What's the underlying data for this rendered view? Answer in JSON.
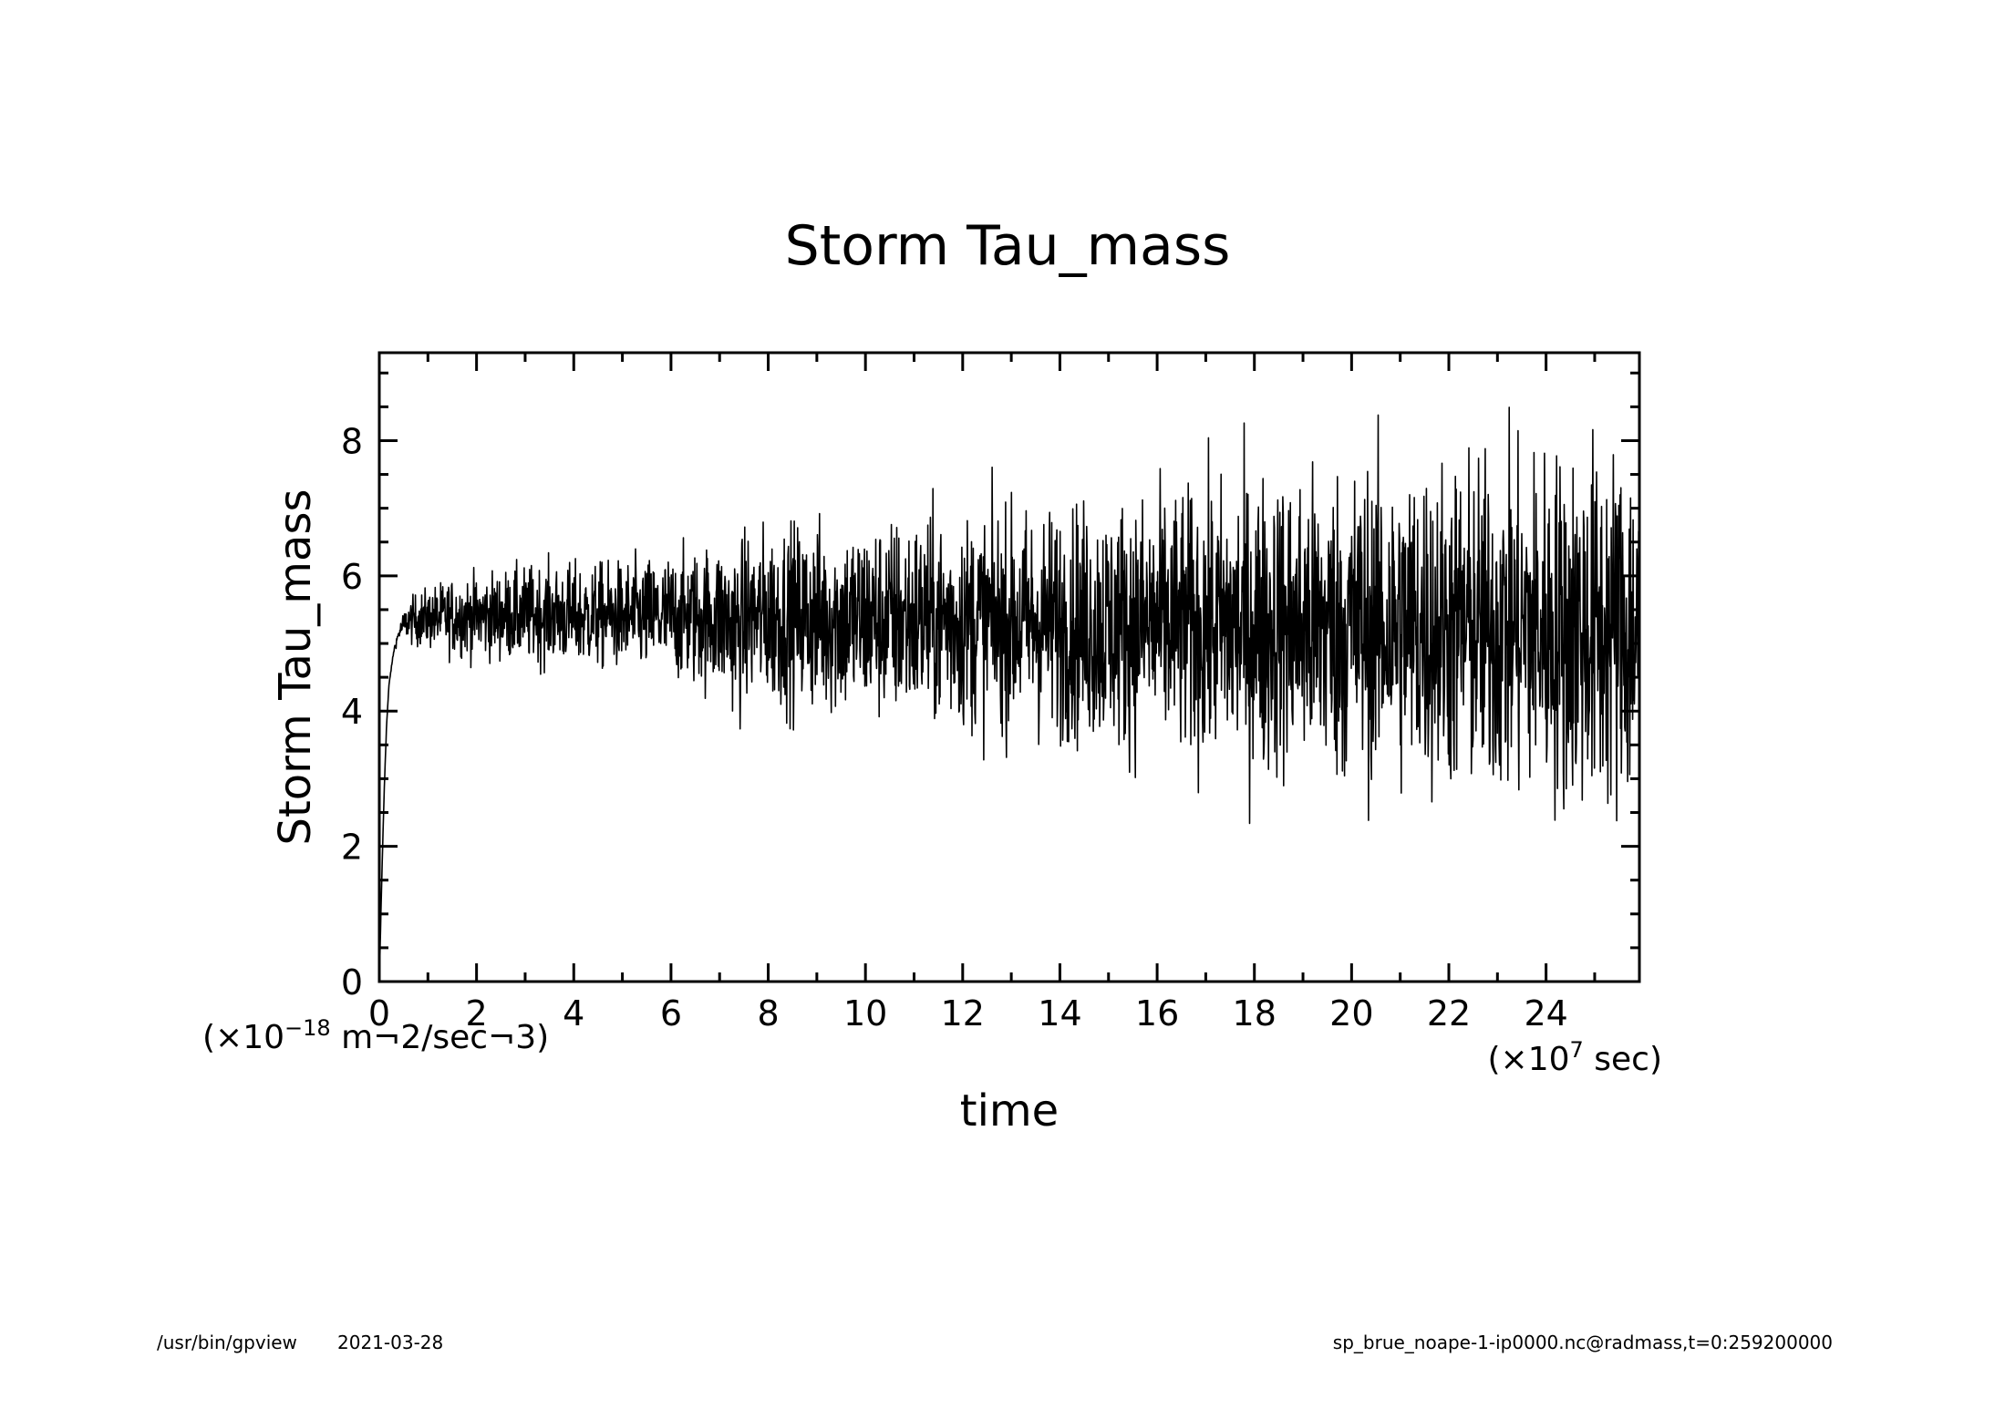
{
  "chart_data": {
    "type": "line",
    "title": "Storm Tau_mass",
    "xlabel": "time",
    "ylabel": "Storm Tau_mass",
    "x_unit_prefix": "(×10",
    "x_unit_exp": "7",
    "x_unit_suffix": " sec)",
    "y_unit_prefix": "(×10",
    "y_unit_exp": "−18",
    "y_unit_suffix": " m¬2/sec¬3)",
    "xlim": [
      0,
      25.92
    ],
    "ylim": [
      0,
      9.3
    ],
    "x_ticks": [
      0,
      2,
      4,
      6,
      8,
      10,
      12,
      14,
      16,
      18,
      20,
      22,
      24
    ],
    "y_ticks": [
      0,
      2,
      4,
      6,
      8
    ],
    "x_tick_labels": [
      "0",
      "2",
      "4",
      "6",
      "8",
      "10",
      "12",
      "14",
      "16",
      "18",
      "20",
      "22",
      "24"
    ],
    "y_tick_labels": [
      "0",
      "2",
      "4",
      "6",
      "8"
    ],
    "series": [
      {
        "name": "Storm Tau_mass",
        "x": [
          0,
          0.05,
          0.1,
          0.15,
          0.2,
          0.3,
          0.4,
          0.5,
          0.6,
          0.8,
          1.0,
          1.5,
          2.0,
          2.5,
          3.0,
          3.5,
          4.0,
          4.5,
          5.0,
          5.5,
          6.0,
          6.5,
          7.0,
          7.2,
          7.4,
          7.6,
          8.0,
          9.0,
          10.0,
          11.0,
          12.0,
          13.0,
          14.0,
          15.0,
          16.0,
          17.0,
          18.0,
          19.0,
          20.0,
          21.0,
          22.0,
          23.0,
          24.0,
          25.0,
          25.9
        ],
        "mean": [
          0,
          1.5,
          2.8,
          3.8,
          4.4,
          4.9,
          5.15,
          5.28,
          5.33,
          5.35,
          5.37,
          5.4,
          5.4,
          5.42,
          5.42,
          5.43,
          5.4,
          5.4,
          5.4,
          5.4,
          5.4,
          5.38,
          5.38,
          5.3,
          5.2,
          5.4,
          5.4,
          5.38,
          5.35,
          5.35,
          5.33,
          5.32,
          5.3,
          5.28,
          5.27,
          5.25,
          5.25,
          5.25,
          5.25,
          5.25,
          5.25,
          5.22,
          5.22,
          5.2,
          5.2
        ],
        "noise_amplitude": [
          0,
          0,
          0,
          0,
          0,
          0.02,
          0.05,
          0.1,
          0.15,
          0.2,
          0.22,
          0.28,
          0.3,
          0.32,
          0.35,
          0.36,
          0.38,
          0.38,
          0.4,
          0.42,
          0.45,
          0.5,
          0.55,
          0.6,
          0.65,
          0.6,
          0.65,
          0.7,
          0.72,
          0.75,
          0.78,
          0.8,
          0.85,
          0.9,
          0.95,
          1.0,
          1.1,
          1.12,
          1.15,
          1.18,
          1.22,
          1.25,
          1.3,
          1.35,
          1.35
        ],
        "color": "#000000"
      }
    ]
  },
  "footer": {
    "program": "/usr/bin/gpview",
    "date": "2021-03-28",
    "source": "sp_brue_noape-1-ip0000.nc@radmass,t=0:259200000"
  }
}
